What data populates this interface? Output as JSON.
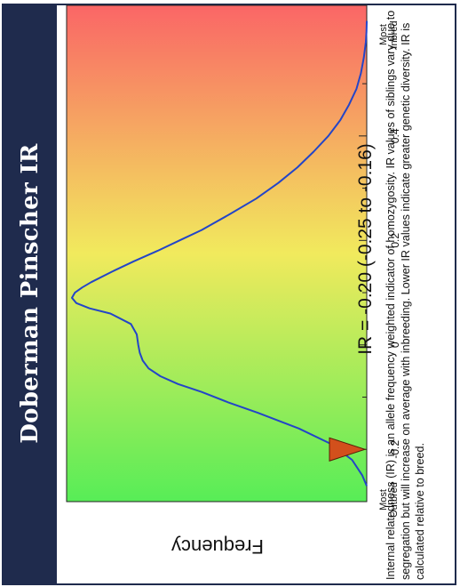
{
  "title": "Doberman Pinscher IR",
  "ylabel": "Frequency",
  "end_labels": {
    "left": "Most\nOutbred",
    "right": "Most\nInbred"
  },
  "ir_text": "IR = -0.20 (-0.25 to -0.16)",
  "description": "Internal relatedness (IR) is an allele frequency weighted indicator of homozygosity.  IR values of siblings vary due to segregation but will increase on average with inbreeding.  Lower IR values indicate greater genetic diversity.  IR is calculated relative to breed.",
  "colors": {
    "title_bg": "#1f2b4d",
    "curve": "#2345c8",
    "marker": "#d2501c",
    "gradient_left": "#57ed57",
    "gradient_mid": "#f1ea5d",
    "gradient_right": "#fa6666"
  },
  "chart_data": {
    "type": "line",
    "xlabel": "",
    "ylabel": "Frequency",
    "xlim": [
      -0.3,
      0.65
    ],
    "ticks_major": [
      -0.2,
      0,
      0.2,
      0.4
    ],
    "tick_labels": [
      "-0.2",
      "0",
      "0.2",
      "0.4"
    ],
    "ticks_minor": [
      -0.1,
      0.1,
      0.3,
      0.5
    ],
    "marker": {
      "x": -0.2,
      "ci": [
        -0.25,
        -0.16
      ]
    },
    "series": [
      {
        "x": [
          -0.27,
          -0.25,
          -0.22,
          -0.19,
          -0.16,
          -0.13,
          -0.11,
          -0.09,
          -0.075,
          -0.06,
          -0.045,
          -0.03,
          -0.015,
          0,
          0.02,
          0.04,
          0.06,
          0.07,
          0.08,
          0.09,
          0.1,
          0.11,
          0.12,
          0.14,
          0.16,
          0.18,
          0.2,
          0.22,
          0.25,
          0.28,
          0.31,
          0.34,
          0.37,
          0.4,
          0.43,
          0.46,
          0.49,
          0.52,
          0.55,
          0.58,
          0.6,
          0.62
        ],
        "y": [
          0.0,
          0.015,
          0.05,
          0.12,
          0.23,
          0.37,
          0.47,
          0.56,
          0.64,
          0.7,
          0.74,
          0.76,
          0.77,
          0.775,
          0.78,
          0.8,
          0.87,
          0.94,
          0.985,
          1.0,
          0.99,
          0.965,
          0.935,
          0.865,
          0.79,
          0.71,
          0.635,
          0.56,
          0.465,
          0.375,
          0.3,
          0.235,
          0.18,
          0.13,
          0.09,
          0.06,
          0.035,
          0.02,
          0.01,
          0.003,
          0.001,
          0.0
        ]
      }
    ]
  }
}
